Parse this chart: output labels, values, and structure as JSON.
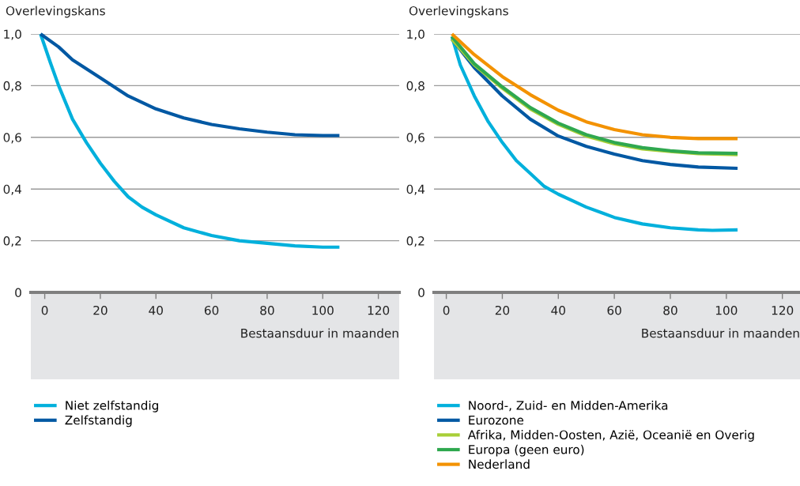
{
  "chart_data": [
    {
      "type": "line",
      "ylabel": "Overlevingskans",
      "xlabel": "Bestaansduur in maanden",
      "xlim": [
        -5,
        127.5
      ],
      "ylim": [
        0,
        1.0
      ],
      "xticks": [
        0,
        20,
        40,
        60,
        80,
        100,
        120
      ],
      "yticks": [
        0,
        {
          "value": 0.2,
          "label": "0,2"
        },
        {
          "value": 0.4,
          "label": "0,4"
        },
        {
          "value": 0.6,
          "label": "0,6"
        },
        {
          "value": 0.8,
          "label": "0,8"
        },
        {
          "value": 1.0,
          "label": "1,0"
        }
      ],
      "grid": "y",
      "legend": "bottom",
      "marker": "none",
      "line_style": "solid",
      "series": [
        {
          "name": "Niet zelfstandig",
          "color": "#00b0dc",
          "x": [
            -1.5,
            2,
            5,
            10,
            15,
            20,
            25,
            30,
            35,
            40,
            50,
            60,
            70,
            80,
            90,
            100,
            106
          ],
          "values": [
            1.0,
            0.89,
            0.8,
            0.67,
            0.58,
            0.5,
            0.43,
            0.37,
            0.33,
            0.3,
            0.25,
            0.22,
            0.2,
            0.19,
            0.18,
            0.175,
            0.175
          ]
        },
        {
          "name": "Zelfstandig",
          "color": "#0058a3",
          "x": [
            -1.5,
            5,
            10,
            20,
            30,
            40,
            50,
            60,
            70,
            80,
            90,
            100,
            106
          ],
          "values": [
            1.0,
            0.95,
            0.9,
            0.83,
            0.76,
            0.71,
            0.675,
            0.65,
            0.633,
            0.62,
            0.61,
            0.607,
            0.607
          ]
        }
      ]
    },
    {
      "type": "line",
      "ylabel": "Overlevingskans",
      "xlabel": "Bestaansduur in maanden",
      "xlim": [
        -4.4,
        126.3
      ],
      "ylim": [
        0,
        1.0
      ],
      "xticks": [
        0,
        20,
        40,
        60,
        80,
        100,
        120
      ],
      "yticks": [
        0,
        {
          "value": 0.2,
          "label": "0,2"
        },
        {
          "value": 0.4,
          "label": "0,4"
        },
        {
          "value": 0.6,
          "label": "0,6"
        },
        {
          "value": 0.8,
          "label": "0,8"
        },
        {
          "value": 1.0,
          "label": "1,0"
        }
      ],
      "grid": "y",
      "legend": "bottom",
      "marker": "none",
      "line_style": "solid",
      "series": [
        {
          "name": "Noord-, Zuid- en Midden-Amerika",
          "color": "#00b0dc",
          "x": [
            2,
            5,
            10,
            15,
            20,
            25,
            30,
            35,
            40,
            50,
            60,
            70,
            80,
            90,
            95,
            104
          ],
          "values": [
            0.99,
            0.88,
            0.76,
            0.66,
            0.58,
            0.51,
            0.46,
            0.41,
            0.38,
            0.33,
            0.29,
            0.265,
            0.25,
            0.242,
            0.24,
            0.242
          ]
        },
        {
          "name": "Eurozone",
          "color": "#0058a3",
          "x": [
            2,
            10,
            20,
            30,
            40,
            50,
            60,
            70,
            80,
            90,
            104
          ],
          "values": [
            0.98,
            0.87,
            0.76,
            0.67,
            0.605,
            0.565,
            0.535,
            0.51,
            0.495,
            0.485,
            0.48
          ]
        },
        {
          "name": "Afrika, Midden-Oosten, Azië, Oceanië en Overig",
          "color": "#a8cf38",
          "x": [
            2,
            10,
            20,
            30,
            40,
            50,
            60,
            70,
            80,
            90,
            104
          ],
          "values": [
            0.98,
            0.88,
            0.79,
            0.71,
            0.65,
            0.605,
            0.575,
            0.555,
            0.545,
            0.537,
            0.533
          ]
        },
        {
          "name": "Europa (geen euro)",
          "color": "#2fa84f",
          "x": [
            2,
            10,
            20,
            30,
            40,
            50,
            60,
            70,
            80,
            90,
            104
          ],
          "values": [
            0.99,
            0.885,
            0.795,
            0.715,
            0.655,
            0.61,
            0.58,
            0.56,
            0.548,
            0.54,
            0.538
          ]
        },
        {
          "name": "Nederland",
          "color": "#f39200",
          "x": [
            2,
            10,
            20,
            30,
            40,
            50,
            60,
            70,
            80,
            90,
            104
          ],
          "values": [
            1.0,
            0.92,
            0.835,
            0.765,
            0.705,
            0.66,
            0.63,
            0.61,
            0.6,
            0.595,
            0.595
          ]
        }
      ]
    }
  ]
}
